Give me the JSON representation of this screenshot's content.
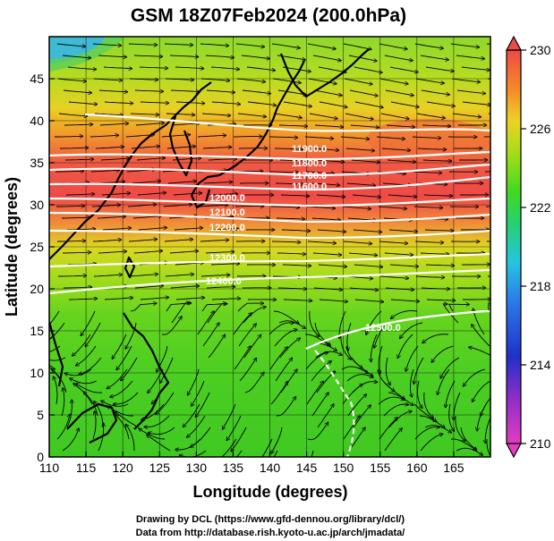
{
  "title": "GSM 18Z07Feb2024 (200.0hPa)",
  "x_axis": {
    "label": "Longitude (degrees)",
    "range": [
      110,
      170
    ],
    "ticks": [
      "110",
      "115",
      "120",
      "125",
      "130",
      "135",
      "140",
      "145",
      "150",
      "155",
      "160",
      "165"
    ]
  },
  "y_axis": {
    "label": "Latitude  (degrees)",
    "range": [
      0,
      50
    ],
    "ticks": [
      "0",
      "5",
      "10",
      "15",
      "20",
      "25",
      "30",
      "35",
      "40",
      "45"
    ]
  },
  "colorbar": {
    "range": [
      210,
      230
    ],
    "ticks": [
      "210",
      "214",
      "218",
      "222",
      "226",
      "230"
    ],
    "colors": [
      "#e23cc0",
      "#2030c8",
      "#2a9ee8",
      "#22d0b8",
      "#44d822",
      "#a6dc1a",
      "#ecd224",
      "#f48a2a",
      "#ee4a46"
    ]
  },
  "contour_labels": [
    "11900.0",
    "11800.0",
    "11700.0",
    "11600.0",
    "12000.0",
    "12100.0",
    "12200.0",
    "12300.0",
    "12400.0",
    "12500.0"
  ],
  "credits": [
    "Drawing by DCL (https://www.gfd-dennou.org/library/dcl/)",
    "Data from http://database.rish.kyoto-u.ac.jp/arch/jmadata/"
  ]
}
